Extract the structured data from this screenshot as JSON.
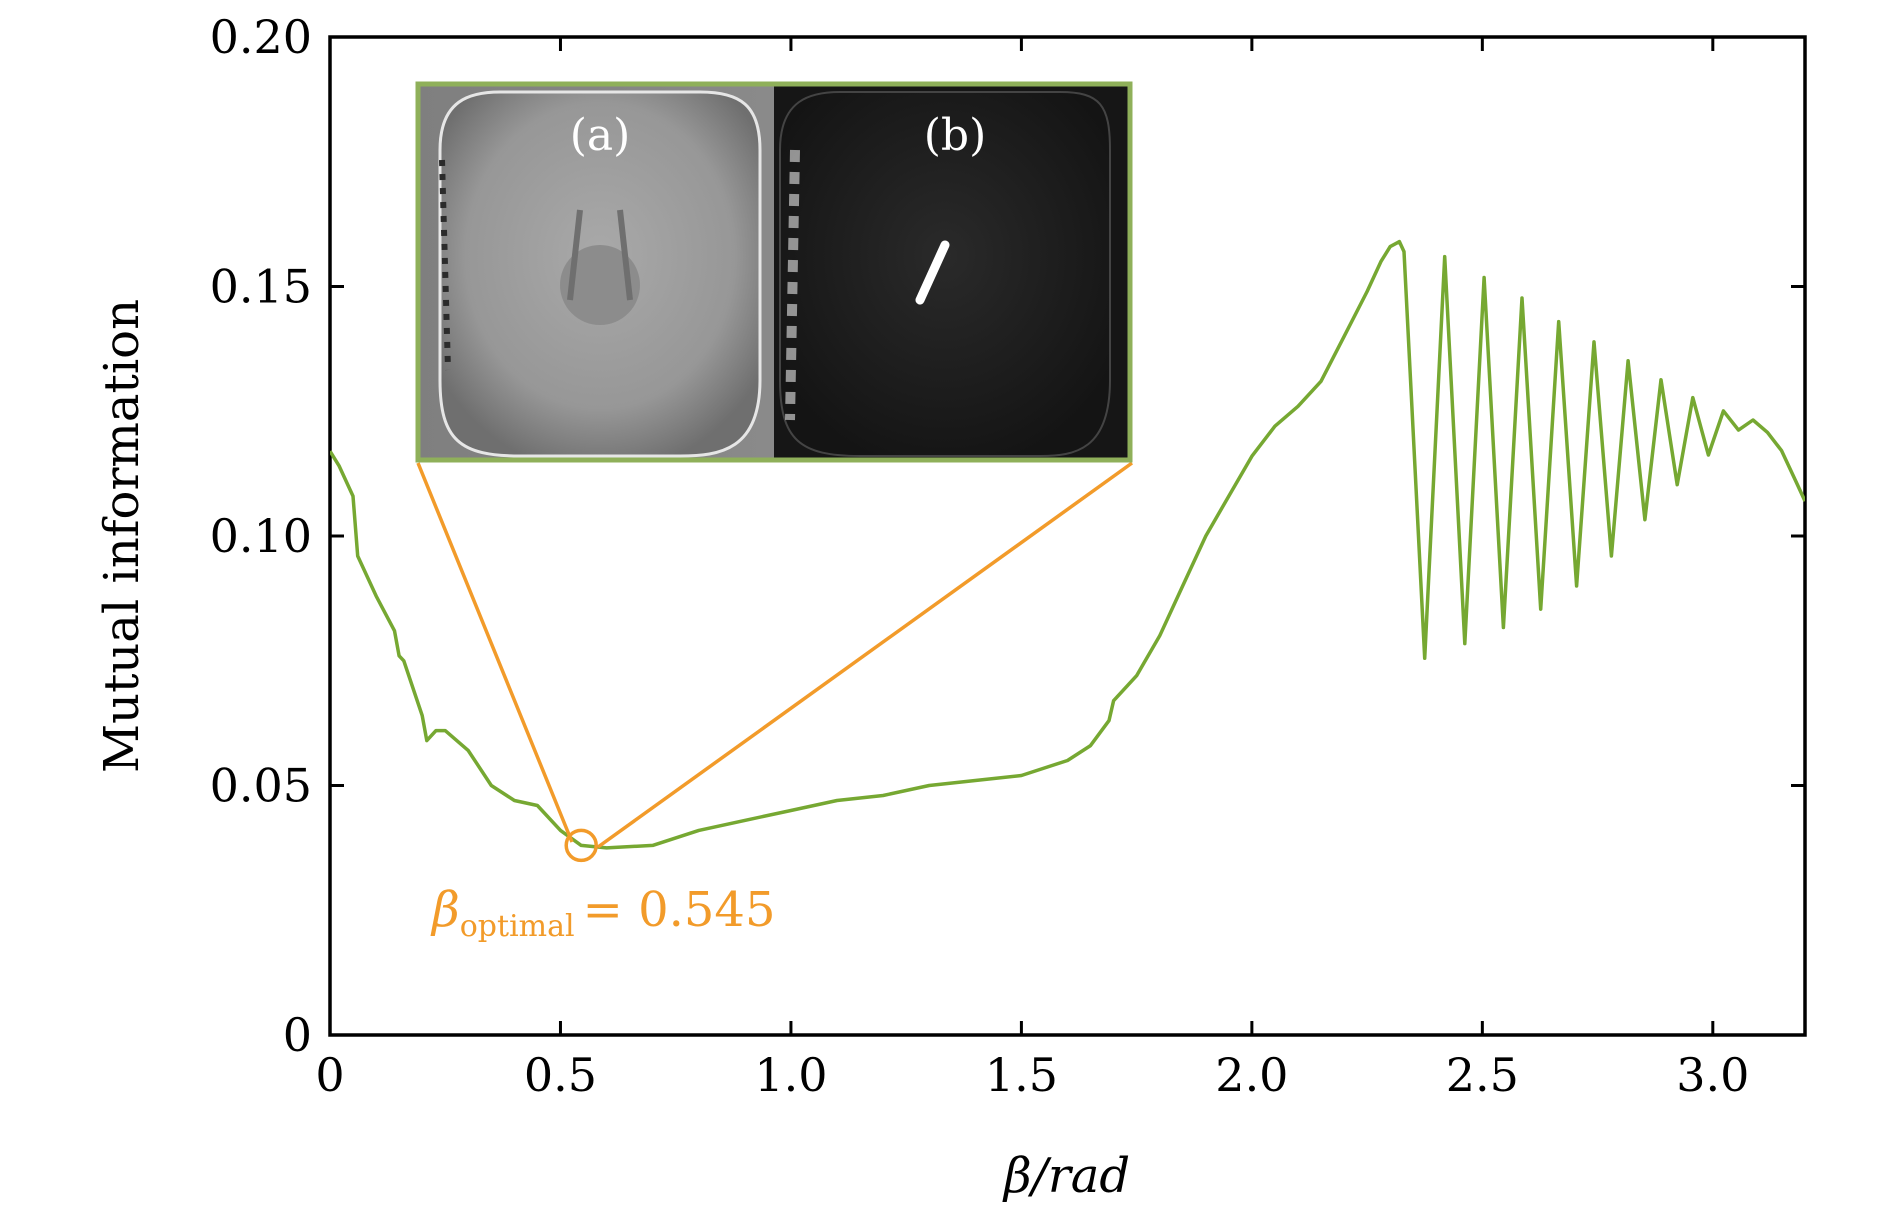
{
  "chart_data": {
    "type": "line",
    "title": "",
    "xlabel": "β/rad",
    "ylabel": "Mutual information",
    "xlim": [
      0,
      3.2
    ],
    "ylim": [
      0,
      0.2
    ],
    "x_ticks": [
      {
        "value": 0,
        "label": "0"
      },
      {
        "value": 0.5,
        "label": "0.5"
      },
      {
        "value": 1.0,
        "label": "1.0"
      },
      {
        "value": 1.5,
        "label": "1.5"
      },
      {
        "value": 2.0,
        "label": "2.0"
      },
      {
        "value": 2.5,
        "label": "2.5"
      },
      {
        "value": 3.0,
        "label": "3.0"
      }
    ],
    "y_ticks": [
      {
        "value": 0,
        "label": "0"
      },
      {
        "value": 0.05,
        "label": "0.05"
      },
      {
        "value": 0.1,
        "label": "0.10"
      },
      {
        "value": 0.15,
        "label": "0.15"
      },
      {
        "value": 0.2,
        "label": "0.20"
      }
    ],
    "grid": false,
    "series": [
      {
        "name": "Mutual information",
        "color": "#76a832",
        "smooth_points": [
          [
            0.0,
            0.117
          ],
          [
            0.02,
            0.114
          ],
          [
            0.05,
            0.108
          ],
          [
            0.06,
            0.096
          ],
          [
            0.1,
            0.088
          ],
          [
            0.14,
            0.081
          ],
          [
            0.15,
            0.076
          ],
          [
            0.16,
            0.075
          ],
          [
            0.2,
            0.064
          ],
          [
            0.21,
            0.059
          ],
          [
            0.23,
            0.061
          ],
          [
            0.25,
            0.061
          ],
          [
            0.3,
            0.057
          ],
          [
            0.35,
            0.05
          ],
          [
            0.4,
            0.047
          ],
          [
            0.45,
            0.046
          ],
          [
            0.5,
            0.041
          ],
          [
            0.545,
            0.038
          ],
          [
            0.6,
            0.0375
          ],
          [
            0.7,
            0.038
          ],
          [
            0.8,
            0.041
          ],
          [
            0.9,
            0.043
          ],
          [
            1.0,
            0.045
          ],
          [
            1.1,
            0.047
          ],
          [
            1.2,
            0.048
          ],
          [
            1.3,
            0.05
          ],
          [
            1.4,
            0.051
          ],
          [
            1.5,
            0.052
          ],
          [
            1.6,
            0.055
          ],
          [
            1.65,
            0.058
          ],
          [
            1.69,
            0.063
          ],
          [
            1.7,
            0.067
          ],
          [
            1.75,
            0.072
          ],
          [
            1.8,
            0.08
          ],
          [
            1.85,
            0.09
          ],
          [
            1.9,
            0.1
          ],
          [
            1.95,
            0.108
          ],
          [
            2.0,
            0.116
          ],
          [
            2.05,
            0.122
          ],
          [
            2.1,
            0.126
          ],
          [
            2.15,
            0.131
          ],
          [
            2.2,
            0.14
          ],
          [
            2.25,
            0.149
          ],
          [
            2.28,
            0.155
          ],
          [
            2.3,
            0.158
          ],
          [
            2.32,
            0.159
          ],
          [
            2.33,
            0.157
          ]
        ],
        "oscillation": {
          "start": 2.33,
          "end": 3.2,
          "first_period": 0.09,
          "period_decay": 0.965,
          "peaks": [
            [
              2.42,
              0.156
            ],
            [
              2.5,
              0.152
            ],
            [
              2.56,
              0.149
            ],
            [
              2.62,
              0.146
            ],
            [
              2.68,
              0.142
            ],
            [
              2.8,
              0.136
            ],
            [
              2.95,
              0.128
            ],
            [
              3.05,
              0.124
            ],
            [
              3.1,
              0.123
            ],
            [
              3.15,
              0.117
            ],
            [
              3.2,
              0.107
            ]
          ],
          "troughs": [
            [
              2.36,
              0.075
            ],
            [
              2.45,
              0.078
            ],
            [
              2.53,
              0.081
            ],
            [
              2.6,
              0.084
            ],
            [
              2.66,
              0.087
            ],
            [
              2.75,
              0.093
            ],
            [
              2.85,
              0.103
            ],
            [
              2.95,
              0.113
            ],
            [
              3.05,
              0.121
            ],
            [
              3.1,
              0.123
            ],
            [
              3.15,
              0.117
            ],
            [
              3.2,
              0.107
            ]
          ]
        }
      }
    ],
    "annotations": [
      {
        "type": "circle-marker",
        "x": 0.545,
        "y": 0.038,
        "color": "#f29b2a"
      },
      {
        "type": "text",
        "symbol": "β",
        "subscript": "optimal",
        "text": "= 0.545",
        "color": "#f29b2a"
      }
    ],
    "inset": {
      "border_color": "#8fb05a",
      "panels": [
        {
          "label": "(a)",
          "description": "gray face map"
        },
        {
          "label": "(b)",
          "description": "dark face map"
        }
      ]
    }
  }
}
